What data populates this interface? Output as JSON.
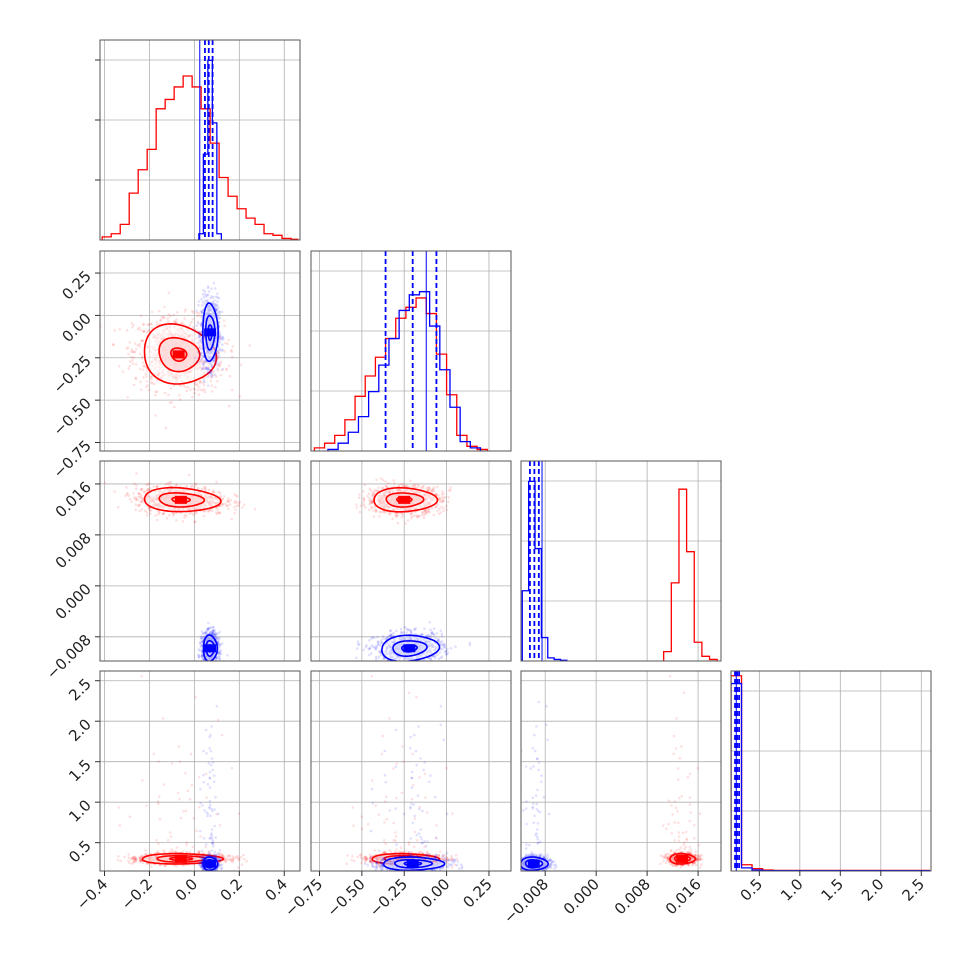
{
  "chart_data": {
    "type": "corner",
    "title": "",
    "grid": true,
    "series": [
      {
        "color": "#ff0000"
      },
      {
        "color": "#0000ff"
      }
    ],
    "ranges": [
      [
        -0.42,
        0.47
      ],
      [
        -0.8,
        0.38
      ],
      [
        -0.0118,
        0.0196
      ],
      [
        0.15,
        2.62
      ]
    ],
    "ticks": [
      [
        -0.4,
        -0.2,
        0.0,
        0.2,
        0.4
      ],
      [
        -0.75,
        -0.5,
        -0.25,
        0.0,
        0.25
      ],
      [
        -0.008,
        0.0,
        0.008,
        0.016
      ],
      [
        0.5,
        1.0,
        1.5,
        2.0,
        2.5
      ]
    ],
    "tick_labels": [
      [
        "−0.4",
        "−0.2",
        "0.0",
        "0.2",
        "0.4"
      ],
      [
        "−0.75",
        "−0.50",
        "−0.25",
        "0.00",
        "0.25"
      ],
      [
        "−0.008",
        "0.000",
        "0.008",
        "0.016"
      ],
      [
        "0.5",
        "1.0",
        "1.5",
        "2.0",
        "2.5"
      ]
    ],
    "histograms": [
      {
        "param": 0,
        "red": {
          "edges": [
            -0.41,
            -0.37,
            -0.33,
            -0.29,
            -0.25,
            -0.21,
            -0.17,
            -0.13,
            -0.09,
            -0.05,
            -0.01,
            0.03,
            0.07,
            0.11,
            0.15,
            0.19,
            0.23,
            0.27,
            0.31,
            0.35,
            0.39,
            0.43,
            0.46
          ],
          "counts": [
            0.02,
            0.04,
            0.1,
            0.3,
            0.45,
            0.58,
            0.84,
            0.9,
            0.98,
            1.05,
            0.98,
            0.84,
            0.62,
            0.4,
            0.28,
            0.2,
            0.14,
            0.1,
            0.04,
            0.03,
            0.01,
            0.005
          ]
        },
        "blue": {
          "edges": [
            0.02,
            0.04,
            0.06,
            0.08,
            0.1,
            0.12
          ],
          "counts": [
            0.04,
            0.55,
            1.15,
            0.75,
            0.04
          ]
        },
        "quantiles": [
          0.047,
          0.064,
          0.081
        ],
        "median_line": 0.024
      },
      {
        "param": 1,
        "red": {
          "edges": [
            -0.78,
            -0.72,
            -0.66,
            -0.6,
            -0.54,
            -0.48,
            -0.42,
            -0.36,
            -0.3,
            -0.24,
            -0.18,
            -0.12,
            -0.06,
            0.0,
            0.06,
            0.12,
            0.18,
            0.24
          ],
          "counts": [
            0.02,
            0.05,
            0.1,
            0.2,
            0.35,
            0.48,
            0.6,
            0.72,
            0.85,
            0.92,
            0.98,
            0.88,
            0.62,
            0.36,
            0.1,
            0.03,
            0.01
          ]
        },
        "blue": {
          "edges": [
            -0.7,
            -0.64,
            -0.58,
            -0.52,
            -0.46,
            -0.4,
            -0.34,
            -0.28,
            -0.22,
            -0.16,
            -0.1,
            -0.04,
            0.02,
            0.08,
            0.14,
            0.2
          ],
          "counts": [
            0.01,
            0.05,
            0.12,
            0.22,
            0.38,
            0.55,
            0.72,
            0.9,
            1.0,
            1.02,
            0.8,
            0.52,
            0.28,
            0.06,
            0.02
          ]
        },
        "quantiles": [
          -0.36,
          -0.2,
          -0.06
        ],
        "median_line": -0.12
      },
      {
        "param": 2,
        "red": {
          "edges": [
            0.0106,
            0.0118,
            0.013,
            0.0142,
            0.0154,
            0.0166,
            0.0178,
            0.019
          ],
          "counts": [
            0.06,
            0.5,
            1.1,
            0.7,
            0.12,
            0.03,
            0.01
          ]
        },
        "blue": {
          "edges": [
            -0.0116,
            -0.0106,
            -0.0096,
            -0.0086,
            -0.0076,
            -0.0066,
            -0.0056,
            -0.0046
          ],
          "counts": [
            0.45,
            1.15,
            0.72,
            0.15,
            0.02,
            0.01,
            0.005
          ]
        },
        "quantiles": [
          -0.0104,
          -0.0097,
          -0.009
        ],
        "median_line": -0.0085
      },
      {
        "param": 3,
        "red": {
          "edges": [
            0.15,
            0.28,
            0.41,
            0.54,
            0.67,
            2.6
          ],
          "counts": [
            1.25,
            0.04,
            0.015,
            0.006,
            0.004
          ]
        },
        "blue": {
          "edges": [
            0.15,
            0.28,
            0.41,
            0.54,
            2.6
          ],
          "counts": [
            1.2,
            0.02,
            0.006,
            0.002
          ]
        },
        "quantiles": [
          0.2,
          0.225,
          0.25
        ],
        "median_line": 0.215
      }
    ],
    "pairs": [
      {
        "row": 1,
        "col": 0,
        "red": {
          "mean": [
            -0.07,
            -0.23
          ],
          "sd": [
            0.1,
            0.11
          ],
          "rho": -0.1,
          "levels": [
            0.35,
            0.9,
            1.6
          ]
        },
        "blue": {
          "mean": [
            0.07,
            -0.1
          ],
          "sd": [
            0.02,
            0.1
          ],
          "rho": 0.0,
          "levels": [
            0.45,
            1.0,
            1.7
          ]
        }
      },
      {
        "row": 2,
        "col": 0,
        "red": {
          "mean": [
            -0.06,
            0.0135
          ],
          "sd": [
            0.1,
            0.0011
          ],
          "rho": -0.1,
          "levels": [
            0.4,
            1.0,
            1.7
          ]
        },
        "blue": {
          "mean": [
            0.07,
            -0.0098
          ],
          "sd": [
            0.018,
            0.0012
          ],
          "rho": 0.0,
          "levels": [
            0.45,
            1.0,
            1.7
          ]
        }
      },
      {
        "row": 2,
        "col": 1,
        "red": {
          "mean": [
            -0.25,
            0.0135
          ],
          "sd": [
            0.11,
            0.0011
          ],
          "rho": 0.0,
          "levels": [
            0.4,
            1.0,
            1.7
          ]
        },
        "blue": {
          "mean": [
            -0.22,
            -0.0098
          ],
          "sd": [
            0.1,
            0.0012
          ],
          "rho": 0.1,
          "levels": [
            0.45,
            1.0,
            1.7
          ]
        }
      },
      {
        "row": 3,
        "col": 0,
        "red": {
          "mean": [
            -0.06,
            0.3
          ],
          "sd": [
            0.1,
            0.035
          ],
          "rho": 0.0,
          "levels": [
            0.5,
            1.1,
            1.8
          ]
        },
        "blue": {
          "mean": [
            0.07,
            0.24
          ],
          "sd": [
            0.018,
            0.045
          ],
          "rho": 0.0,
          "levels": [
            0.5,
            1.1,
            1.8
          ]
        }
      },
      {
        "row": 3,
        "col": 1,
        "red": {
          "mean": [
            -0.25,
            0.3
          ],
          "sd": [
            0.11,
            0.035
          ],
          "rho": 0.0,
          "levels": [
            0.5,
            1.1,
            1.8
          ]
        },
        "blue": {
          "mean": [
            -0.2,
            0.24
          ],
          "sd": [
            0.1,
            0.045
          ],
          "rho": 0.0,
          "levels": [
            0.5,
            1.1,
            1.8
          ]
        }
      },
      {
        "row": 3,
        "col": 2,
        "red": {
          "mean": [
            0.0135,
            0.3
          ],
          "sd": [
            0.0011,
            0.035
          ],
          "rho": 0.0,
          "levels": [
            0.5,
            1.1,
            1.8
          ]
        },
        "blue": {
          "mean": [
            -0.0098,
            0.24
          ],
          "sd": [
            0.0012,
            0.045
          ],
          "rho": 0.0,
          "levels": [
            0.5,
            1.1,
            1.8
          ]
        }
      }
    ]
  }
}
